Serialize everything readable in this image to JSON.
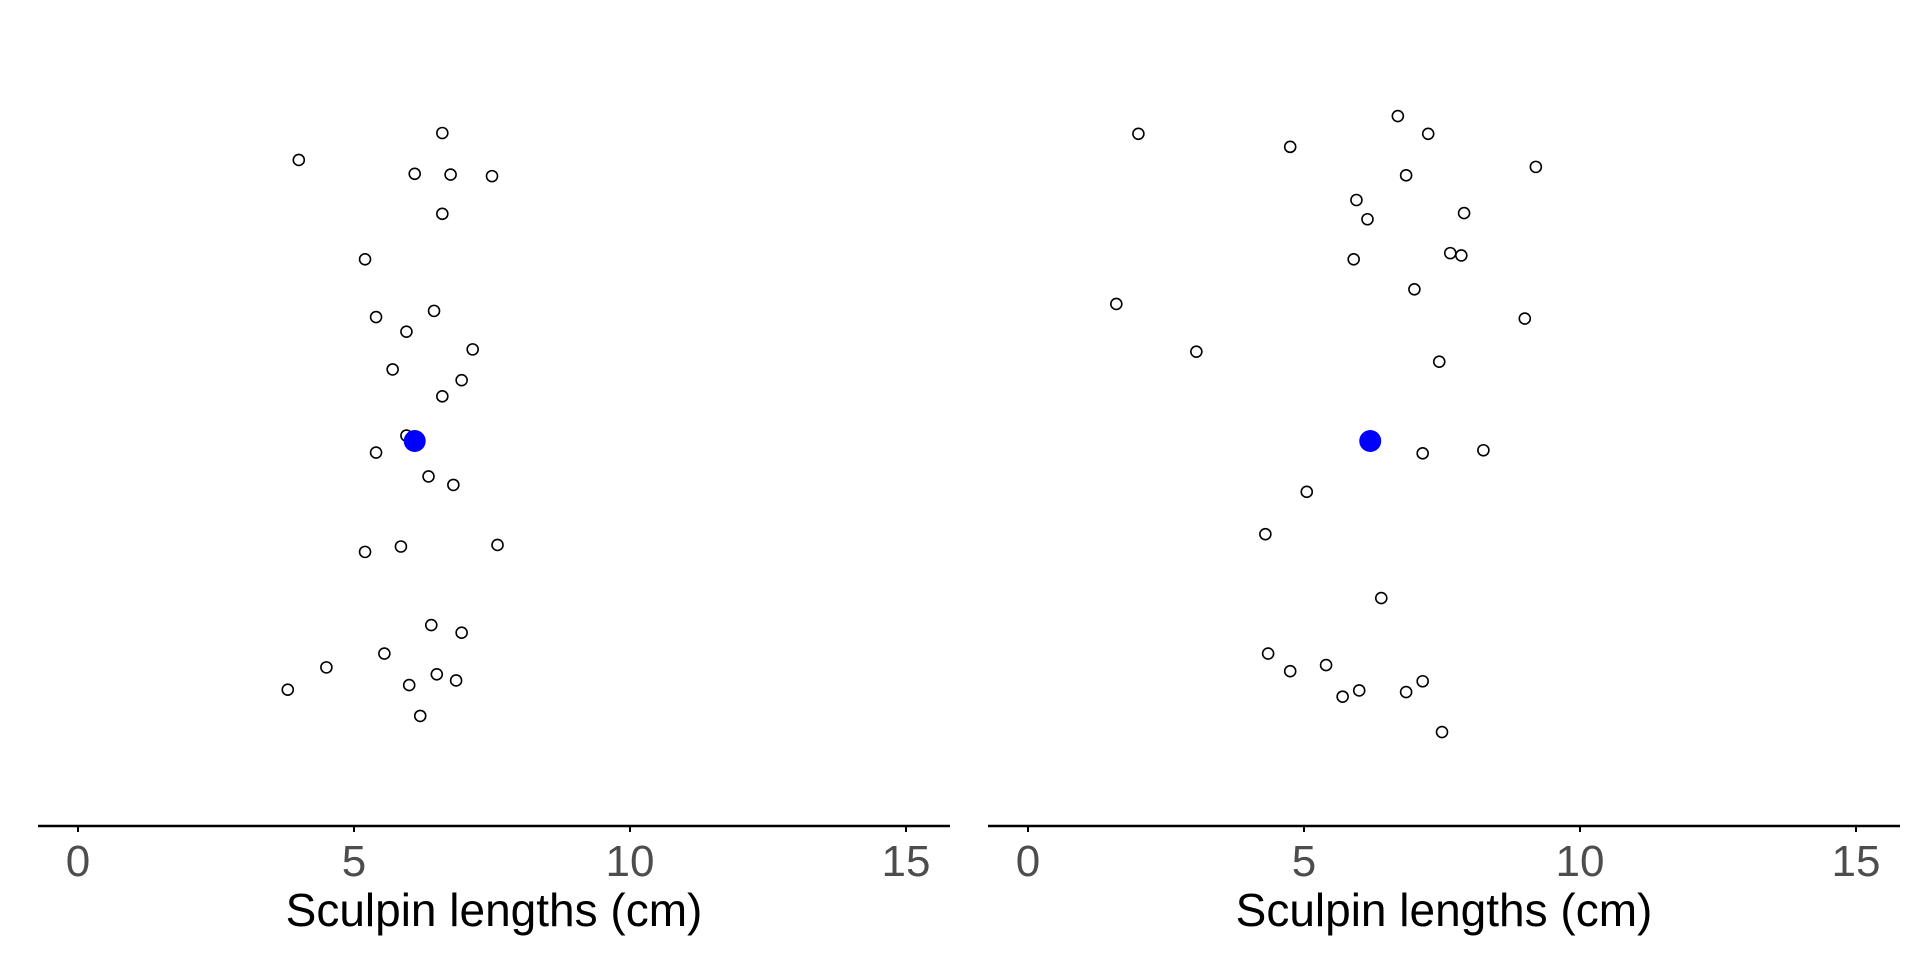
{
  "chart_data": [
    {
      "type": "scatter",
      "xlabel": "Sculpin lengths (cm)",
      "xlim": [
        -1.5,
        15.8
      ],
      "ylim": [
        0,
        1
      ],
      "xticks": [
        0,
        5,
        10,
        15
      ],
      "x_tick_labels": [
        "0",
        "5",
        "10",
        "15"
      ],
      "y_axis_shown": false,
      "grid": false,
      "mean_point": {
        "x": 6.1,
        "y": 0.5,
        "color": "#0000ff"
      },
      "points": [
        {
          "x": 6.6,
          "y": 0.9
        },
        {
          "x": 4.0,
          "y": 0.865
        },
        {
          "x": 6.1,
          "y": 0.847
        },
        {
          "x": 6.75,
          "y": 0.846
        },
        {
          "x": 7.5,
          "y": 0.844
        },
        {
          "x": 6.6,
          "y": 0.795
        },
        {
          "x": 5.2,
          "y": 0.736
        },
        {
          "x": 6.45,
          "y": 0.669
        },
        {
          "x": 5.4,
          "y": 0.661
        },
        {
          "x": 5.95,
          "y": 0.642
        },
        {
          "x": 7.15,
          "y": 0.619
        },
        {
          "x": 5.7,
          "y": 0.593
        },
        {
          "x": 6.95,
          "y": 0.579
        },
        {
          "x": 6.6,
          "y": 0.558
        },
        {
          "x": 5.95,
          "y": 0.507
        },
        {
          "x": 5.4,
          "y": 0.485
        },
        {
          "x": 6.35,
          "y": 0.454
        },
        {
          "x": 6.8,
          "y": 0.443
        },
        {
          "x": 7.6,
          "y": 0.365
        },
        {
          "x": 5.85,
          "y": 0.363
        },
        {
          "x": 5.2,
          "y": 0.356
        },
        {
          "x": 6.4,
          "y": 0.261
        },
        {
          "x": 6.95,
          "y": 0.251
        },
        {
          "x": 5.55,
          "y": 0.224
        },
        {
          "x": 4.5,
          "y": 0.206
        },
        {
          "x": 6.5,
          "y": 0.197
        },
        {
          "x": 6.85,
          "y": 0.189
        },
        {
          "x": 6.0,
          "y": 0.183
        },
        {
          "x": 3.8,
          "y": 0.177
        },
        {
          "x": 6.2,
          "y": 0.143
        }
      ]
    },
    {
      "type": "scatter",
      "xlabel": "Sculpin lengths (cm)",
      "xlim": [
        -1.5,
        15.8
      ],
      "ylim": [
        0,
        1
      ],
      "xticks": [
        0,
        5,
        10,
        15
      ],
      "x_tick_labels": [
        "0",
        "5",
        "10",
        "15"
      ],
      "y_axis_shown": false,
      "grid": false,
      "mean_point": {
        "x": 6.2,
        "y": 0.5,
        "color": "#0000ff"
      },
      "points": [
        {
          "x": 6.7,
          "y": 0.922
        },
        {
          "x": 2.0,
          "y": 0.899
        },
        {
          "x": 7.25,
          "y": 0.899
        },
        {
          "x": 4.75,
          "y": 0.882
        },
        {
          "x": 9.2,
          "y": 0.856
        },
        {
          "x": 6.85,
          "y": 0.845
        },
        {
          "x": 5.95,
          "y": 0.813
        },
        {
          "x": 7.9,
          "y": 0.796
        },
        {
          "x": 6.15,
          "y": 0.788
        },
        {
          "x": 7.65,
          "y": 0.744
        },
        {
          "x": 7.85,
          "y": 0.741
        },
        {
          "x": 5.9,
          "y": 0.736
        },
        {
          "x": 7.0,
          "y": 0.697
        },
        {
          "x": 1.6,
          "y": 0.678
        },
        {
          "x": 9.0,
          "y": 0.659
        },
        {
          "x": 3.05,
          "y": 0.616
        },
        {
          "x": 7.45,
          "y": 0.603
        },
        {
          "x": 8.25,
          "y": 0.488
        },
        {
          "x": 7.15,
          "y": 0.484
        },
        {
          "x": 5.05,
          "y": 0.434
        },
        {
          "x": 4.3,
          "y": 0.379
        },
        {
          "x": 6.4,
          "y": 0.296
        },
        {
          "x": 4.35,
          "y": 0.224
        },
        {
          "x": 5.4,
          "y": 0.209
        },
        {
          "x": 4.75,
          "y": 0.201
        },
        {
          "x": 7.15,
          "y": 0.188
        },
        {
          "x": 6.0,
          "y": 0.176
        },
        {
          "x": 6.85,
          "y": 0.174
        },
        {
          "x": 5.7,
          "y": 0.168
        },
        {
          "x": 7.5,
          "y": 0.122
        }
      ]
    }
  ]
}
